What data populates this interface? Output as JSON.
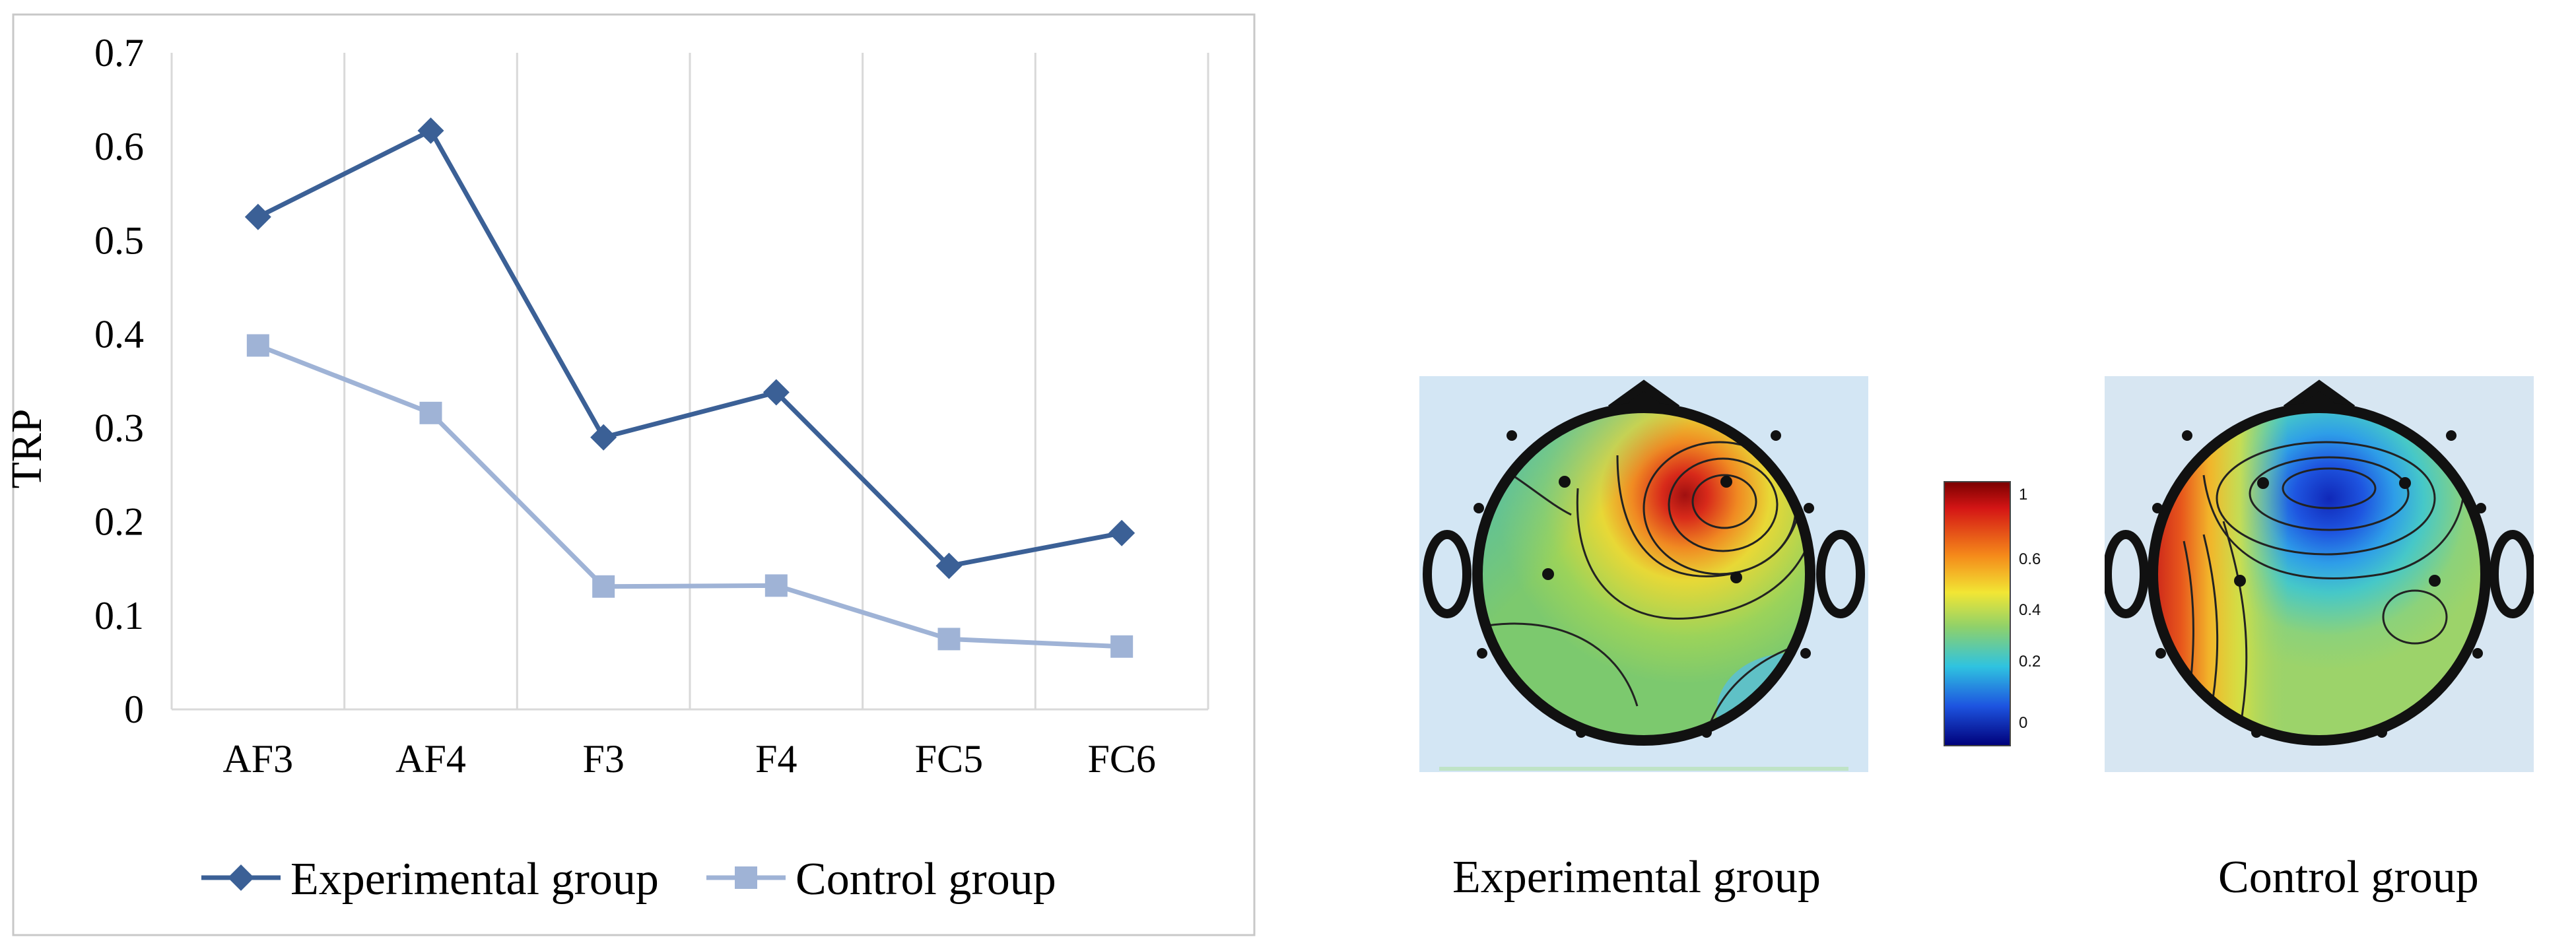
{
  "colors": {
    "experimental": "#3B6096",
    "control": "#9FB3D6",
    "grid": "#D9D9D9",
    "frame": "#C8C8C8"
  },
  "chart_data": {
    "type": "line",
    "categories": [
      "AF3",
      "AF4",
      "F3",
      "F4",
      "FC5",
      "FC6"
    ],
    "series": [
      {
        "name": "Experimental group",
        "marker": "diamond",
        "values": [
          0.525,
          0.617,
          0.29,
          0.338,
          0.153,
          0.188
        ]
      },
      {
        "name": "Control group",
        "marker": "square",
        "values": [
          0.388,
          0.316,
          0.131,
          0.132,
          0.075,
          0.067
        ]
      }
    ],
    "ylabel": "TRP",
    "ylim": [
      0,
      0.7
    ],
    "yticks": [
      "0",
      "0.1",
      "0.2",
      "0.3",
      "0.4",
      "0.5",
      "0.6",
      "0.7"
    ],
    "grid": "vertical",
    "legend_position": "bottom"
  },
  "topomaps": {
    "colorbar_ticks": [
      "1",
      "0.6",
      "0.4",
      "0.2",
      "0"
    ],
    "maps": [
      {
        "caption": "Experimental group"
      },
      {
        "caption": "Control group"
      }
    ]
  }
}
